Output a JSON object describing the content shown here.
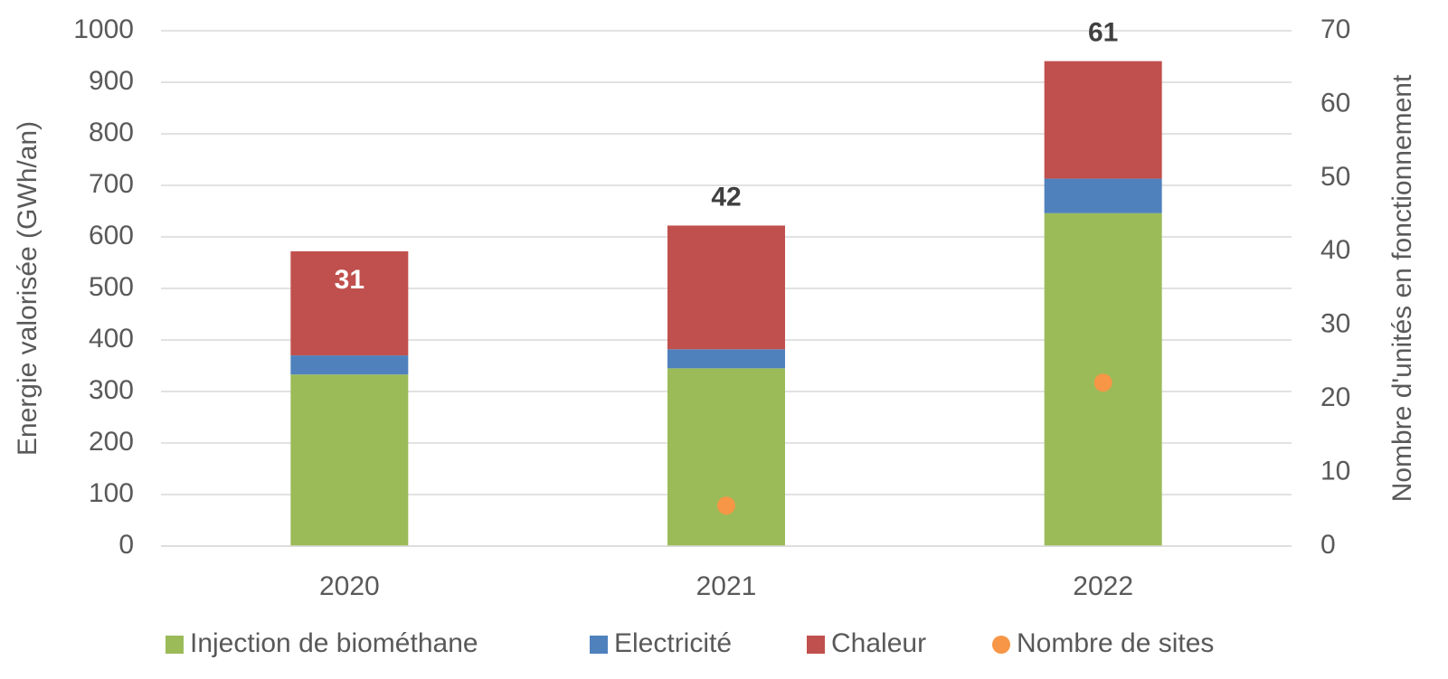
{
  "chart_data": {
    "type": "stacked_bar",
    "categories": [
      "2020",
      "2021",
      "2022"
    ],
    "series": [
      {
        "name": "Injection de biométhane",
        "color": "#9bbb59",
        "values": [
          333,
          345,
          646
        ]
      },
      {
        "name": "Electricité",
        "color": "#4f81bd",
        "values": [
          37,
          37,
          67
        ]
      },
      {
        "name": "Chaleur",
        "color": "#c0504d",
        "values": [
          202,
          240,
          228
        ]
      },
      {
        "name": "Nombre de sites",
        "color": "#f79646",
        "type": "scatter",
        "axis": "y2",
        "values": [
          null,
          5.5,
          22.2
        ]
      }
    ],
    "bar_labels": [
      31,
      42,
      61
    ],
    "bar_label_colors": [
      "#ffffff",
      "#404040",
      "#404040"
    ],
    "ylabel": "Energie valorisée  (GWh/an)",
    "y2label": "Nombre d'unités en fonctionnement",
    "ylim": [
      0,
      1000
    ],
    "yticks": [
      0,
      100,
      200,
      300,
      400,
      500,
      600,
      700,
      800,
      900,
      1000
    ],
    "y2lim": [
      0,
      70
    ],
    "y2ticks": [
      0,
      10,
      20,
      30,
      40,
      50,
      60,
      70
    ],
    "grid": true,
    "legend": "bottom"
  }
}
